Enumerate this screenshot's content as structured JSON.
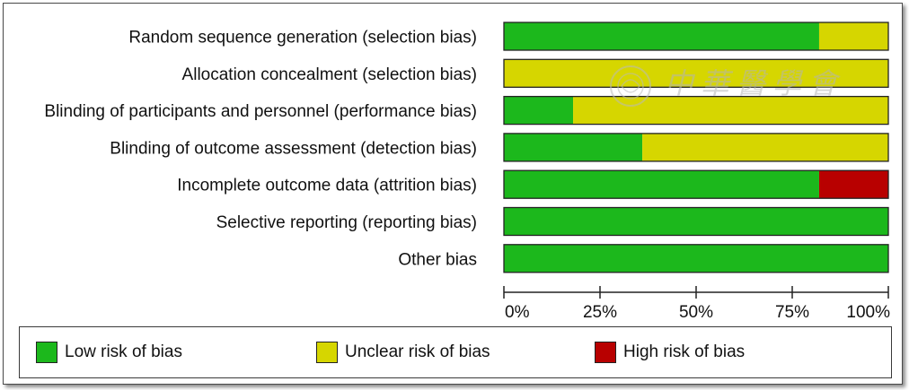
{
  "colors": {
    "low": "#1cb81c",
    "unclear": "#d6d600",
    "high": "#b80000"
  },
  "chart_data": {
    "type": "bar",
    "orientation": "horizontal",
    "stacked": true,
    "categories": [
      "Random sequence generation (selection bias)",
      "Allocation concealment (selection bias)",
      "Blinding of participants and personnel (performance bias)",
      "Blinding of outcome assessment (detection bias)",
      "Incomplete outcome data (attrition bias)",
      "Selective reporting (reporting bias)",
      "Other bias"
    ],
    "series": [
      {
        "name": "Low risk of bias",
        "color": "#1cb81c",
        "values": [
          82,
          0,
          18,
          36,
          82,
          100,
          100
        ]
      },
      {
        "name": "Unclear risk of bias",
        "color": "#d6d600",
        "values": [
          18,
          100,
          82,
          64,
          0,
          0,
          0
        ]
      },
      {
        "name": "High risk of bias",
        "color": "#b80000",
        "values": [
          0,
          0,
          0,
          0,
          18,
          0,
          0
        ]
      }
    ],
    "xticks": [
      "0%",
      "25%",
      "50%",
      "75%",
      "100%"
    ],
    "xlim": [
      0,
      100
    ],
    "grid": false,
    "legend_position": "bottom"
  },
  "watermark": {
    "text": "中華醫學會",
    "seal": "seal-emblem"
  }
}
